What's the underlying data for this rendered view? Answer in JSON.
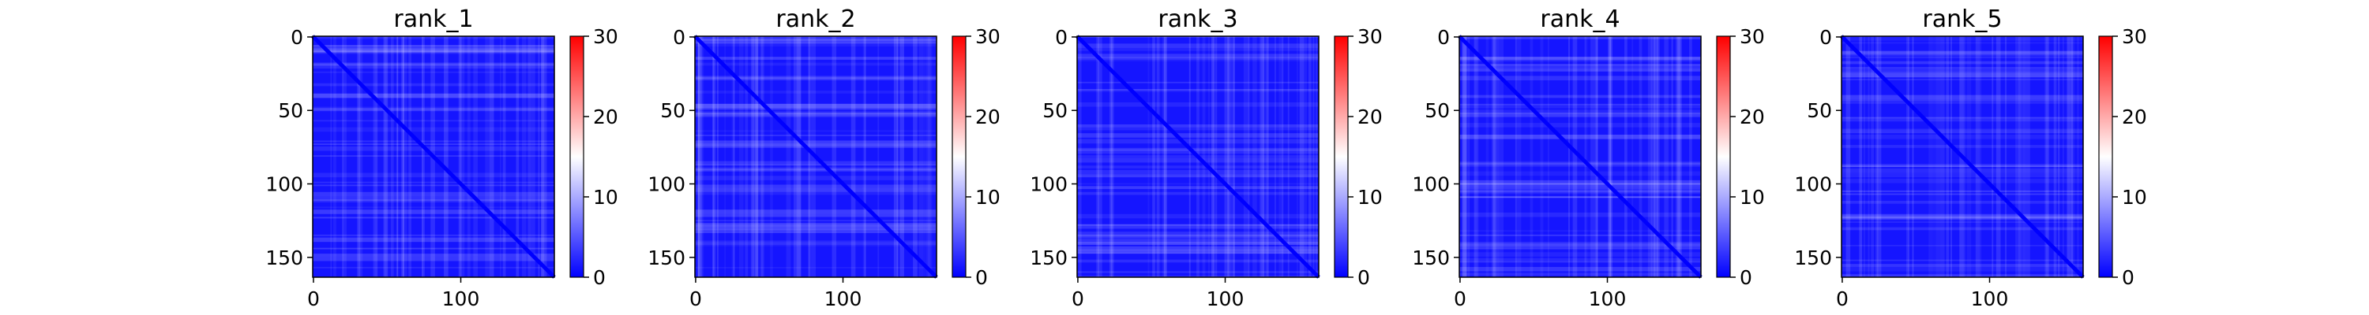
{
  "chart_data": [
    {
      "type": "heatmap",
      "title": "rank_1",
      "x_ticks": [
        0,
        100
      ],
      "y_ticks": [
        0,
        50,
        100,
        150
      ],
      "matrix_size": 164,
      "value_range": [
        0,
        30
      ],
      "colorbar_ticks": [
        0,
        10,
        20,
        30
      ],
      "colormap": [
        "#0000ff",
        "#ffffff",
        "#ff0000"
      ]
    },
    {
      "type": "heatmap",
      "title": "rank_2",
      "x_ticks": [
        0,
        100
      ],
      "y_ticks": [
        0,
        50,
        100,
        150
      ],
      "matrix_size": 164,
      "value_range": [
        0,
        30
      ],
      "colorbar_ticks": [
        0,
        10,
        20,
        30
      ],
      "colormap": [
        "#0000ff",
        "#ffffff",
        "#ff0000"
      ]
    },
    {
      "type": "heatmap",
      "title": "rank_3",
      "x_ticks": [
        0,
        100
      ],
      "y_ticks": [
        0,
        50,
        100,
        150
      ],
      "matrix_size": 164,
      "value_range": [
        0,
        30
      ],
      "colorbar_ticks": [
        0,
        10,
        20,
        30
      ],
      "colormap": [
        "#0000ff",
        "#ffffff",
        "#ff0000"
      ]
    },
    {
      "type": "heatmap",
      "title": "rank_4",
      "x_ticks": [
        0,
        100
      ],
      "y_ticks": [
        0,
        50,
        100,
        150
      ],
      "matrix_size": 164,
      "value_range": [
        0,
        30
      ],
      "colorbar_ticks": [
        0,
        10,
        20,
        30
      ],
      "colormap": [
        "#0000ff",
        "#ffffff",
        "#ff0000"
      ]
    },
    {
      "type": "heatmap",
      "title": "rank_5",
      "x_ticks": [
        0,
        100
      ],
      "y_ticks": [
        0,
        50,
        100,
        150
      ],
      "matrix_size": 164,
      "value_range": [
        0,
        30
      ],
      "colorbar_ticks": [
        0,
        10,
        20,
        30
      ],
      "colormap": [
        "#0000ff",
        "#ffffff",
        "#ff0000"
      ]
    }
  ]
}
